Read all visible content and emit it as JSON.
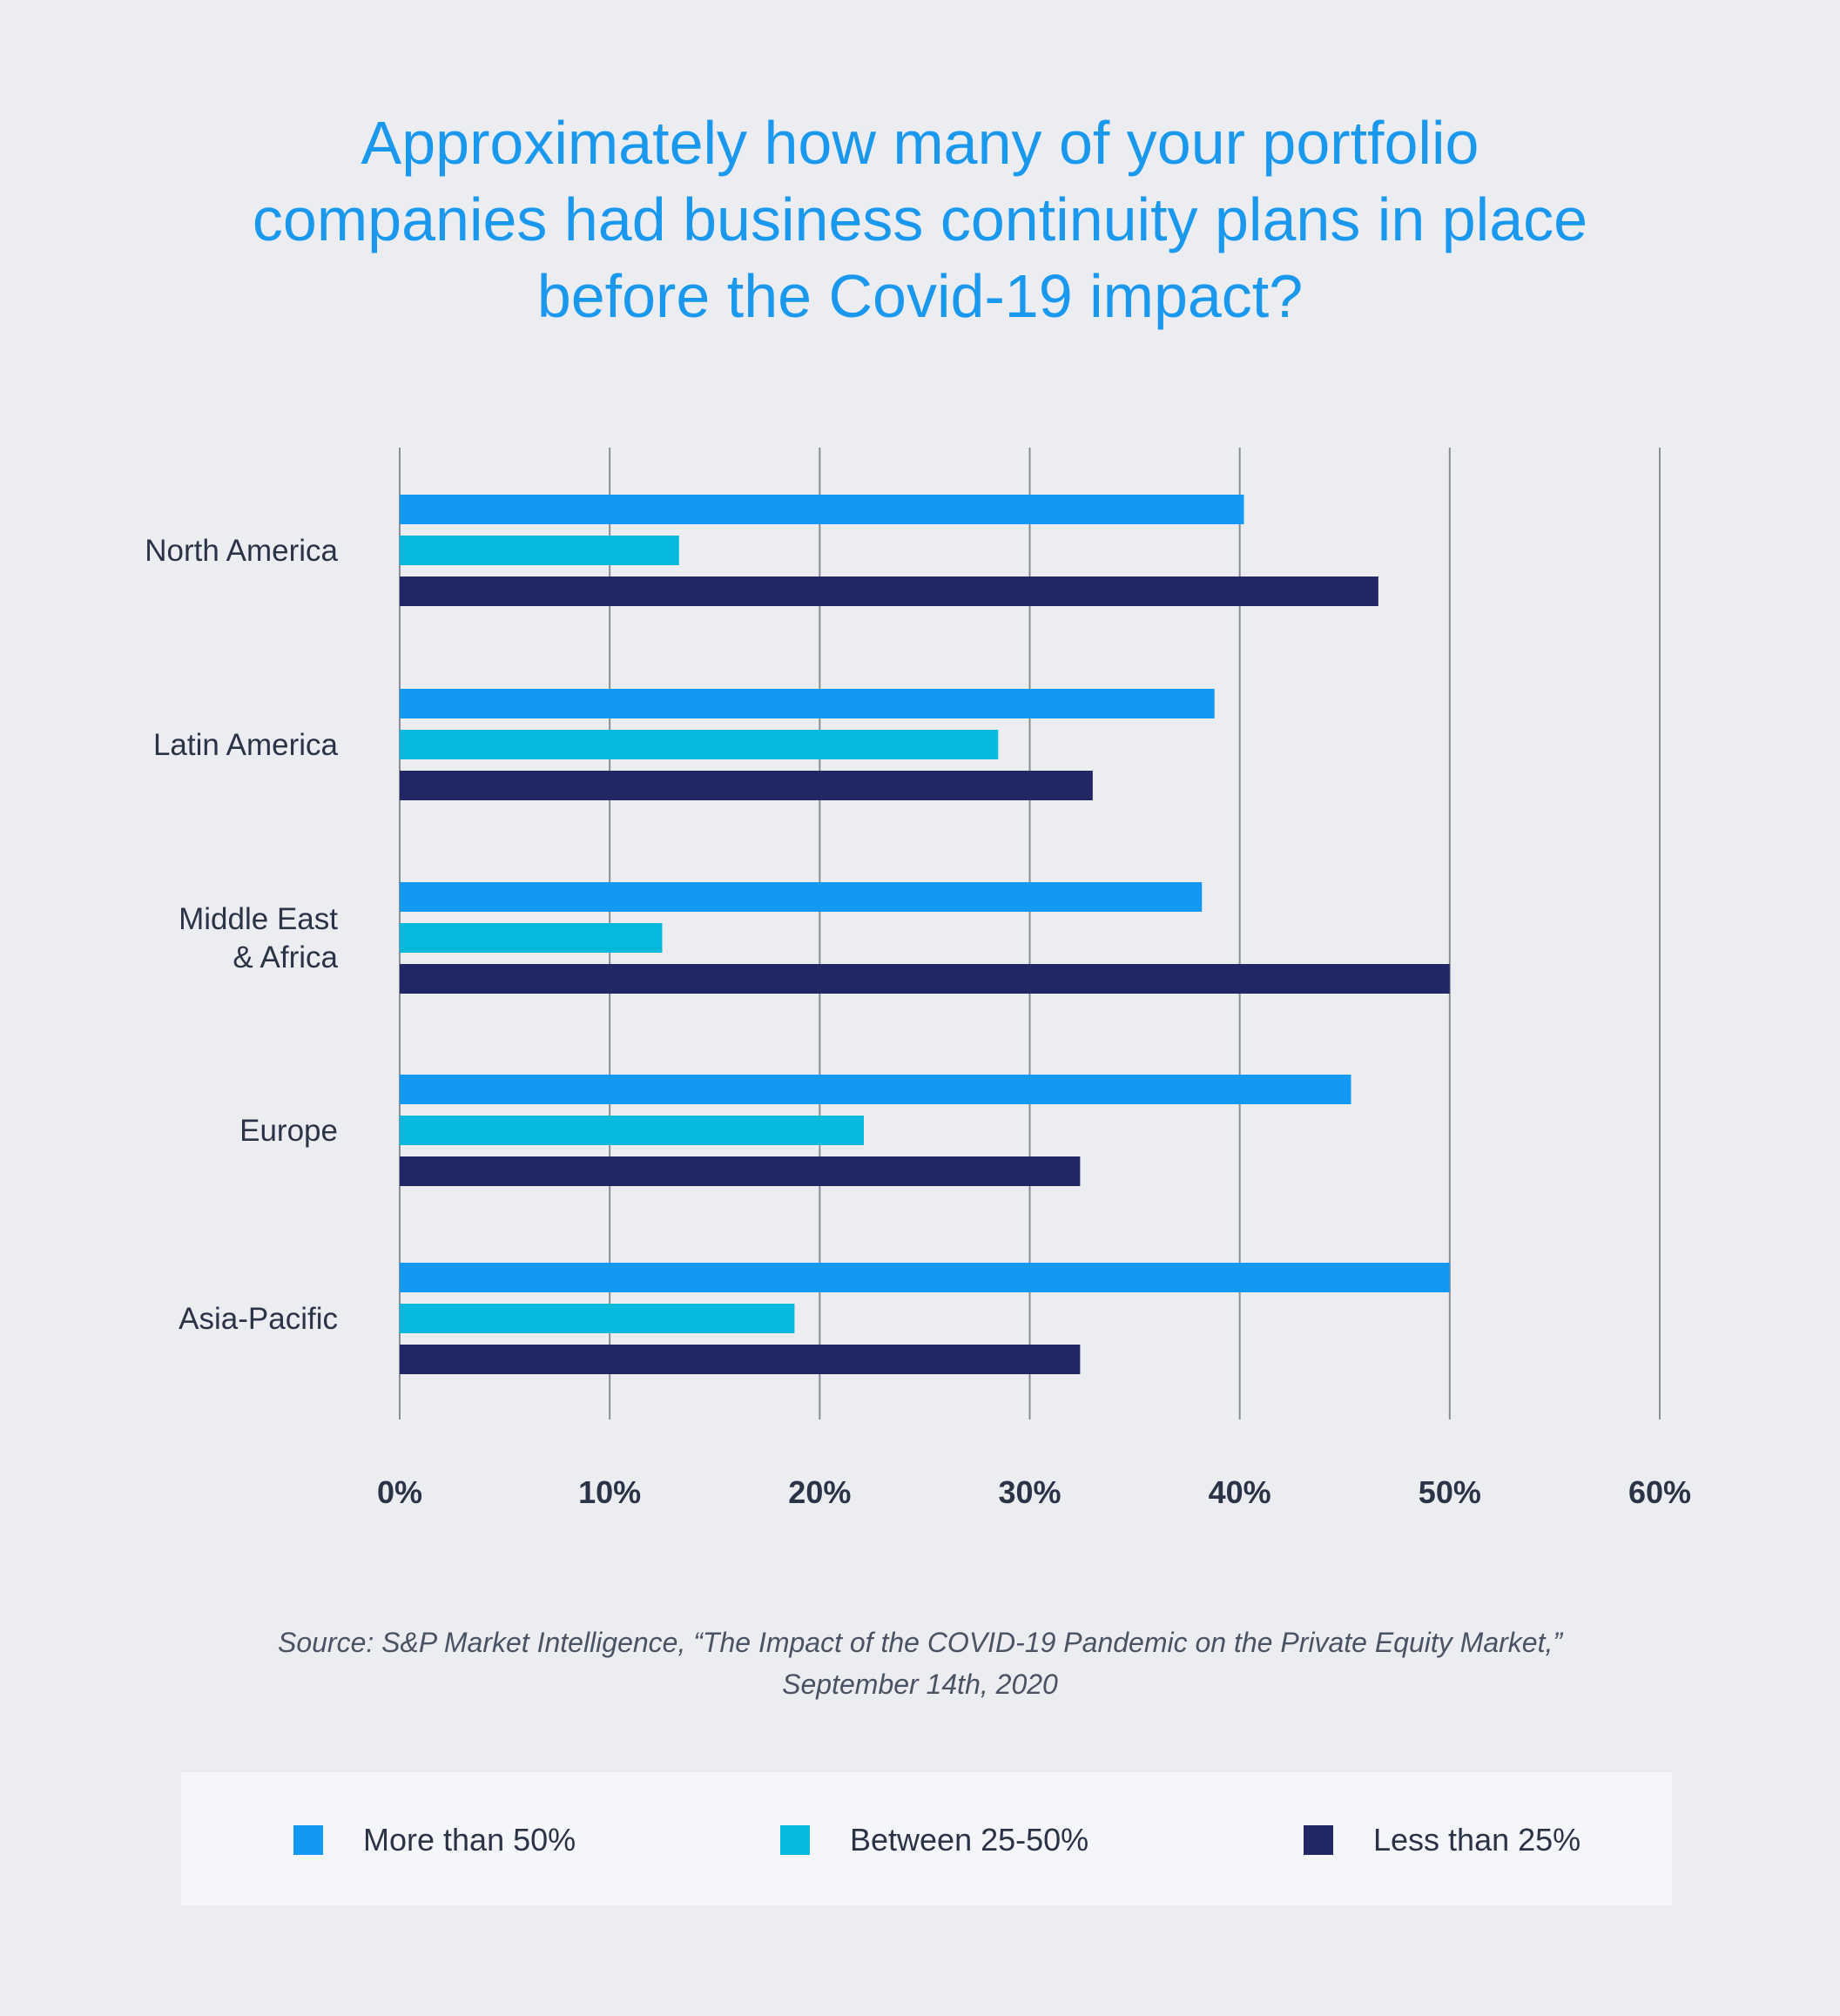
{
  "chart_data": {
    "type": "bar",
    "orientation": "horizontal",
    "title": [
      "Approximately how many of your portfolio",
      "companies had business continuity plans in place",
      "before the Covid-19 impact?"
    ],
    "categories": [
      "North America",
      "Latin America",
      [
        "Middle East",
        "& Africa"
      ],
      "Europe",
      "Asia-Pacific"
    ],
    "series": [
      {
        "name": "More than 50%",
        "color": "#1399f5",
        "values": [
          40.2,
          38.8,
          38.2,
          45.3,
          50.0
        ]
      },
      {
        "name": "Between 25-50%",
        "color": "#03b9dc",
        "values": [
          13.3,
          28.5,
          12.5,
          22.1,
          18.8
        ]
      },
      {
        "name": "Less than 25%",
        "color": "#212764",
        "values": [
          46.6,
          33.0,
          50.0,
          32.4,
          32.4
        ]
      }
    ],
    "xlim": [
      0,
      60
    ],
    "xticks": [
      "0%",
      "10%",
      "20%",
      "30%",
      "40%",
      "50%",
      "60%"
    ],
    "grid": true,
    "legend": "bottom",
    "xlabel": "",
    "ylabel": ""
  },
  "source": [
    "Source: S&P Market Intelligence, “The Impact of the COVID-19 Pandemic on the Private Equity Market,”",
    "September 14th, 2020"
  ]
}
